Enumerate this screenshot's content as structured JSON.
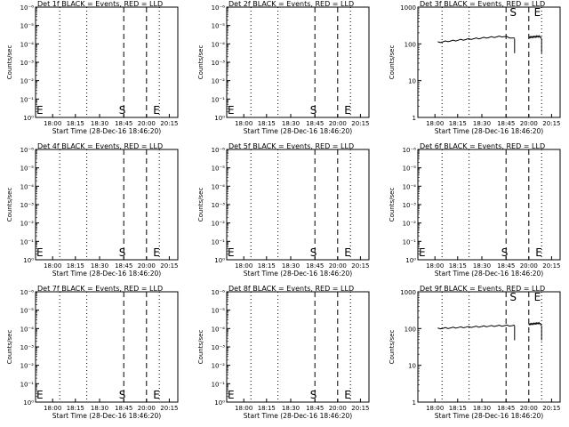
{
  "chart_data": [
    {
      "type": "line",
      "title": "Det 1f BLACK = Events, RED = LLD",
      "xlabel": "Start Time (28-Dec-16 18:46:20)",
      "ylabel": "Counts/sec",
      "scale": "log",
      "y_ticks": [
        "10⁰",
        "10⁻¹",
        "10⁻²",
        "10⁻³",
        "10⁻⁴",
        "10⁻⁵",
        "10⁻⁶"
      ],
      "x_ticks": [
        "18:00",
        "18:15",
        "18:30",
        "18:45",
        "20:00",
        "20:15"
      ],
      "markers": [
        "E",
        "S",
        "E"
      ],
      "series": []
    },
    {
      "type": "line",
      "title": "Det 2f BLACK = Events, RED = LLD",
      "xlabel": "Start Time (28-Dec-16 18:46:20)",
      "ylabel": "Counts/sec",
      "scale": "log",
      "y_ticks": [
        "10⁰",
        "10⁻¹",
        "10⁻²",
        "10⁻³",
        "10⁻⁴",
        "10⁻⁵",
        "10⁻⁶"
      ],
      "x_ticks": [
        "18:00",
        "18:15",
        "18:30",
        "18:45",
        "20:00",
        "20:15"
      ],
      "markers": [
        "E",
        "S",
        "E"
      ],
      "series": []
    },
    {
      "type": "line",
      "title": "Det 3f BLACK = Events, RED = LLD",
      "xlabel": "Start Time (28-Dec-16 18:46:20)",
      "ylabel": "Counts/sec",
      "scale": "log",
      "y_ticks": [
        "1",
        "10",
        "100",
        "1000"
      ],
      "x_ticks": [
        "18:00",
        "18:15",
        "18:30",
        "18:45",
        "20:00",
        "20:15"
      ],
      "markers": [
        "S",
        "E"
      ],
      "series": [
        {
          "segments": [
            {
              "x_start": 0.14,
              "x_end": 0.68,
              "y_start": 110,
              "y_peak": 160,
              "y_end": 140
            },
            {
              "x_start": 0.78,
              "x_end": 0.87,
              "y_start": 150,
              "y_peak": 160,
              "y_end": 140
            }
          ]
        }
      ]
    },
    {
      "type": "line",
      "title": "Det 4f BLACK = Events, RED = LLD",
      "xlabel": "Start Time (28-Dec-16 18:46:20)",
      "ylabel": "Counts/sec",
      "scale": "log",
      "y_ticks": [
        "10⁰",
        "10⁻¹",
        "10⁻²",
        "10⁻³",
        "10⁻⁴",
        "10⁻⁵",
        "10⁻⁶"
      ],
      "x_ticks": [
        "18:00",
        "18:15",
        "18:30",
        "18:45",
        "20:00",
        "20:15"
      ],
      "markers": [
        "E",
        "S",
        "E"
      ],
      "series": []
    },
    {
      "type": "line",
      "title": "Det 5f BLACK = Events, RED = LLD",
      "xlabel": "Start Time (28-Dec-16 18:46:20)",
      "ylabel": "Counts/sec",
      "scale": "log",
      "y_ticks": [
        "10⁰",
        "10⁻¹",
        "10⁻²",
        "10⁻³",
        "10⁻⁴",
        "10⁻⁵",
        "10⁻⁶"
      ],
      "x_ticks": [
        "18:00",
        "18:15",
        "18:30",
        "18:45",
        "20:00",
        "20:15"
      ],
      "markers": [
        "E",
        "S",
        "E"
      ],
      "series": []
    },
    {
      "type": "line",
      "title": "Det 6f BLACK = Events, RED = LLD",
      "xlabel": "Start Time (28-Dec-16 18:46:20)",
      "ylabel": "Counts/sec",
      "scale": "log",
      "y_ticks": [
        "10⁰",
        "10⁻¹",
        "10⁻²",
        "10⁻³",
        "10⁻⁴",
        "10⁻⁵",
        "10⁻⁶"
      ],
      "x_ticks": [
        "18:00",
        "18:15",
        "18:30",
        "18:45",
        "20:00",
        "20:15"
      ],
      "markers": [
        "E",
        "S",
        "E"
      ],
      "series": []
    },
    {
      "type": "line",
      "title": "Det 7f BLACK = Events, RED = LLD",
      "xlabel": "Start Time (28-Dec-16 18:46:20)",
      "ylabel": "Counts/sec",
      "scale": "log",
      "y_ticks": [
        "10⁰",
        "10⁻¹",
        "10⁻²",
        "10⁻³",
        "10⁻⁴",
        "10⁻⁵",
        "10⁻⁶"
      ],
      "x_ticks": [
        "18:00",
        "18:15",
        "18:30",
        "18:45",
        "20:00",
        "20:15"
      ],
      "markers": [
        "E",
        "S",
        "E"
      ],
      "series": []
    },
    {
      "type": "line",
      "title": "Det 8f BLACK = Events, RED = LLD",
      "xlabel": "Start Time (28-Dec-16 18:46:20)",
      "ylabel": "Counts/sec",
      "scale": "log",
      "y_ticks": [
        "10⁰",
        "10⁻¹",
        "10⁻²",
        "10⁻³",
        "10⁻⁴",
        "10⁻⁵",
        "10⁻⁶"
      ],
      "x_ticks": [
        "18:00",
        "18:15",
        "18:30",
        "18:45",
        "20:00",
        "20:15"
      ],
      "markers": [
        "E",
        "S",
        "E"
      ],
      "series": []
    },
    {
      "type": "line",
      "title": "Det 9f BLACK = Events, RED = LLD",
      "xlabel": "Start Time (28-Dec-16 18:46:20)",
      "ylabel": "Counts/sec",
      "scale": "log",
      "y_ticks": [
        "1",
        "10",
        "100",
        "1000"
      ],
      "x_ticks": [
        "18:00",
        "18:15",
        "18:30",
        "18:45",
        "20:00",
        "20:15"
      ],
      "markers": [
        "S",
        "E"
      ],
      "series": [
        {
          "segments": [
            {
              "x_start": 0.14,
              "x_end": 0.68,
              "y_start": 100,
              "y_peak": 120,
              "y_end": 120
            },
            {
              "x_start": 0.78,
              "x_end": 0.87,
              "y_start": 130,
              "y_peak": 140,
              "y_end": 120
            }
          ]
        }
      ]
    }
  ]
}
